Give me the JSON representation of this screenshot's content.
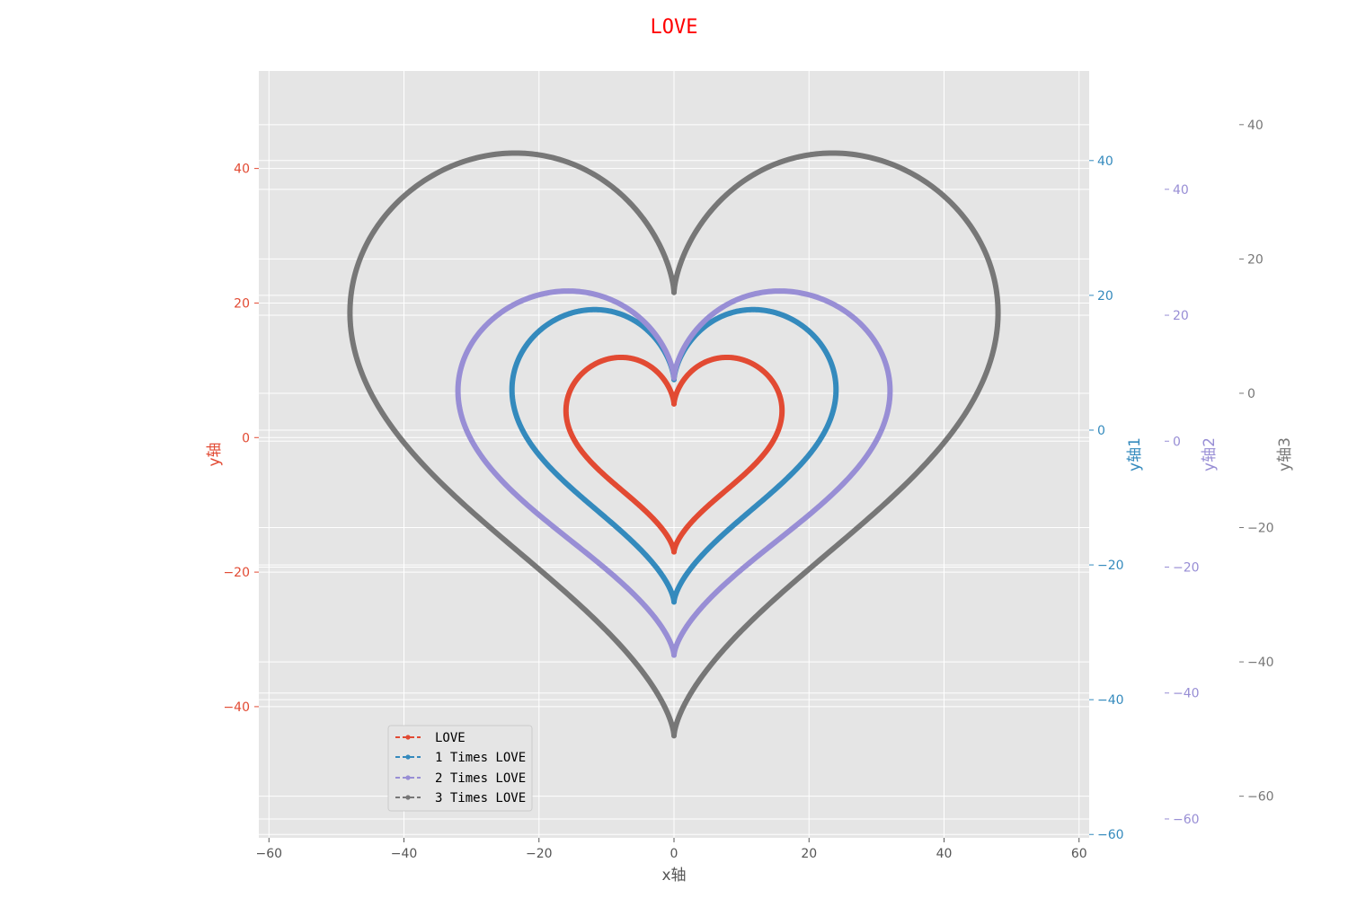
{
  "chart_data": {
    "type": "line",
    "title": "LOVE",
    "xlabel": "x轴",
    "xlim": [
      -61.5,
      61.5
    ],
    "xticks": [
      -60,
      -40,
      -20,
      0,
      20,
      40,
      60
    ],
    "grid": true,
    "legend_location": "lower-left",
    "colors": {
      "title": "#ff0000",
      "background": "#e5e5e5",
      "grid": "#ffffff"
    },
    "axes": [
      {
        "id": "y",
        "label": "y轴",
        "side": "left",
        "ylim": [
          -59.5,
          54.5
        ],
        "ticks": [
          -40,
          -20,
          0,
          20,
          40
        ],
        "color": "#e24a33"
      },
      {
        "id": "y1",
        "label": "y轴1",
        "side": "right",
        "ylim": [
          -60.5,
          53.3
        ],
        "ticks": [
          -60,
          -40,
          -20,
          0,
          20,
          40
        ],
        "color": "#348abd"
      },
      {
        "id": "y2",
        "label": "y轴2",
        "side": "right",
        "ylim": [
          -63.0,
          58.8
        ],
        "ticks": [
          -60,
          -40,
          -20,
          0,
          20,
          40
        ],
        "color": "#988ed5"
      },
      {
        "id": "y3",
        "label": "y轴3",
        "side": "right",
        "ylim": [
          -66.2,
          48.0
        ],
        "ticks": [
          -60,
          -40,
          -20,
          0,
          20,
          40
        ],
        "color": "#777777"
      }
    ],
    "series": [
      {
        "name": "LOVE",
        "axis": "y",
        "scale": 1,
        "color": "#e24a33",
        "linestyle": "dashed",
        "marker": "point",
        "curve": "x = 16 sin^3 t, y = 13 cos t - 5 cos 2t - 2 cos 3t - cos 4t",
        "points": [
          [
            0,
            5
          ],
          [
            8,
            11.5
          ],
          [
            16,
            4
          ],
          [
            12,
            -4
          ],
          [
            0,
            -17
          ],
          [
            -12,
            -4
          ],
          [
            -16,
            4
          ],
          [
            -8,
            11.5
          ]
        ]
      },
      {
        "name": "1 Times LOVE",
        "axis": "y1",
        "scale": 1.5,
        "color": "#348abd",
        "linestyle": "dashed",
        "marker": "point",
        "curve": "x = 24 sin^3 t, y = 19.5 cos t - 7.5 cos 2t - 3 cos 3t - 1.5 cos 4t",
        "points": [
          [
            0,
            7.5
          ],
          [
            12,
            17.3
          ],
          [
            24,
            6
          ],
          [
            18,
            -6
          ],
          [
            0,
            -25.5
          ],
          [
            -18,
            -6
          ],
          [
            -24,
            6
          ],
          [
            -12,
            17.3
          ]
        ]
      },
      {
        "name": "2 Times LOVE",
        "axis": "y2",
        "scale": 2,
        "color": "#988ed5",
        "linestyle": "dashed",
        "marker": "point",
        "curve": "x = 32 sin^3 t, y = 26 cos t - 10 cos 2t - 4 cos 3t - 2 cos 4t",
        "points": [
          [
            0,
            10
          ],
          [
            16,
            23
          ],
          [
            32,
            8
          ],
          [
            24,
            -8
          ],
          [
            0,
            -34
          ],
          [
            -24,
            -8
          ],
          [
            -32,
            8
          ],
          [
            -16,
            23
          ]
        ]
      },
      {
        "name": "3 Times LOVE",
        "axis": "y3",
        "scale": 3,
        "color": "#777777",
        "linestyle": "dashed",
        "marker": "point",
        "curve": "x = 48 sin^3 t, y = 39 cos t - 15 cos 2t - 6 cos 3t - 3 cos 4t",
        "points": [
          [
            0,
            15
          ],
          [
            24,
            34.5
          ],
          [
            48,
            12
          ],
          [
            36,
            -12
          ],
          [
            0,
            -51
          ],
          [
            -36,
            -12
          ],
          [
            -48,
            12
          ],
          [
            -24,
            34.5
          ]
        ]
      }
    ]
  }
}
